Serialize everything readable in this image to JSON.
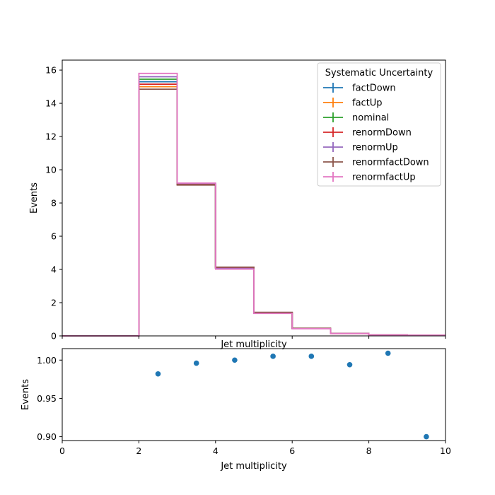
{
  "chart_data": [
    {
      "type": "step",
      "xlabel": "Jet multiplicity",
      "ylabel": "Events",
      "xlim": [
        0,
        10
      ],
      "ylim": [
        0,
        16.6
      ],
      "xticks": [
        0,
        2,
        4,
        6,
        8,
        10
      ],
      "yticks": [
        0,
        2,
        4,
        6,
        8,
        10,
        12,
        14,
        16
      ],
      "ytick_labels": [
        "0",
        "2",
        "4",
        "6",
        "8",
        "10",
        "12",
        "14",
        "16"
      ],
      "grid": false,
      "bin_edges": [
        0,
        1,
        2,
        3,
        4,
        5,
        6,
        7,
        8,
        9,
        10
      ],
      "legend": {
        "title": "Systematic Uncertainty",
        "placement": "top-right"
      },
      "series": [
        {
          "name": "factDown",
          "color": "#1f77b4",
          "values": [
            0,
            0,
            15.3,
            9.15,
            4.1,
            1.4,
            0.45,
            0.15,
            0.06,
            0.04
          ]
        },
        {
          "name": "factUp",
          "color": "#ff7f0e",
          "values": [
            0,
            0,
            15.0,
            9.1,
            4.08,
            1.38,
            0.44,
            0.14,
            0.06,
            0.04
          ]
        },
        {
          "name": "nominal",
          "color": "#2ca02c",
          "values": [
            0,
            0,
            15.45,
            9.12,
            4.1,
            1.4,
            0.45,
            0.15,
            0.06,
            0.04
          ]
        },
        {
          "name": "renormDown",
          "color": "#d62728",
          "values": [
            0,
            0,
            15.15,
            9.1,
            4.12,
            1.41,
            0.45,
            0.15,
            0.06,
            0.04
          ]
        },
        {
          "name": "renormUp",
          "color": "#9467bd",
          "values": [
            0,
            0,
            15.6,
            9.18,
            4.06,
            1.37,
            0.44,
            0.14,
            0.06,
            0.04
          ]
        },
        {
          "name": "renormfactDown",
          "color": "#8c564b",
          "values": [
            0,
            0,
            14.85,
            9.08,
            4.14,
            1.42,
            0.46,
            0.15,
            0.06,
            0.04
          ]
        },
        {
          "name": "renormfactUp",
          "color": "#e377c2",
          "values": [
            0,
            0,
            15.8,
            9.2,
            4.02,
            1.35,
            0.43,
            0.14,
            0.06,
            0.04
          ]
        }
      ]
    },
    {
      "type": "scatter",
      "xlabel": "Jet multiplicity",
      "ylabel": "Events",
      "xlim": [
        0,
        10
      ],
      "ylim": [
        0.895,
        1.015
      ],
      "xticks": [
        0,
        2,
        4,
        6,
        8,
        10
      ],
      "xtick_labels": [
        "0",
        "2",
        "4",
        "6",
        "8",
        "10"
      ],
      "yticks": [
        0.9,
        0.95,
        1.0
      ],
      "ytick_labels": [
        "0.90",
        "0.95",
        "1.00"
      ],
      "grid": false,
      "color": "#1f77b4",
      "x": [
        2.5,
        3.5,
        4.5,
        5.5,
        6.5,
        7.5,
        8.5,
        9.5
      ],
      "y": [
        0.982,
        0.996,
        1.0,
        1.005,
        1.005,
        0.994,
        1.009,
        0.9
      ]
    }
  ]
}
